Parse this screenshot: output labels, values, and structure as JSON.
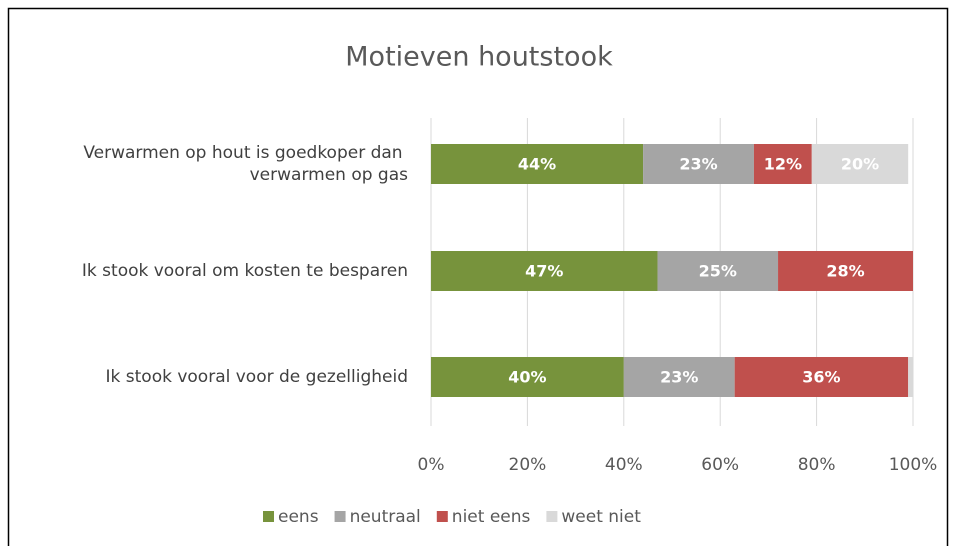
{
  "chart_data": {
    "type": "stacked-bar-horizontal",
    "title": "Motieven houtstook",
    "categories": [
      "Verwarmen op hout is goedkoper dan verwarmen op gas",
      "Ik stook vooral om kosten te besparen",
      "Ik stook vooral voor de gezelligheid"
    ],
    "series": [
      {
        "name": "eens",
        "color": "#77933c",
        "values": [
          44,
          47,
          40
        ],
        "value_labels": [
          "44%",
          "47%",
          "40%"
        ]
      },
      {
        "name": "neutraal",
        "color": "#a5a5a5",
        "values": [
          23,
          25,
          23
        ],
        "value_labels": [
          "23%",
          "25%",
          "23%"
        ]
      },
      {
        "name": "niet eens",
        "color": "#c0504d",
        "values": [
          12,
          28,
          36
        ],
        "value_labels": [
          "12%",
          "28%",
          "36%"
        ]
      },
      {
        "name": "weet niet",
        "color": "#d9d9d9",
        "values": [
          20,
          0,
          1
        ],
        "value_labels": [
          "20%",
          null,
          null
        ]
      }
    ],
    "xlim": [
      0,
      100
    ],
    "xticks": [
      {
        "value": 0,
        "label": "0%"
      },
      {
        "value": 20,
        "label": "20%"
      },
      {
        "value": 40,
        "label": "40%"
      },
      {
        "value": 60,
        "label": "60%"
      },
      {
        "value": 80,
        "label": "80%"
      },
      {
        "value": 100,
        "label": "100%"
      }
    ],
    "grid": true,
    "legend": "bottom"
  }
}
